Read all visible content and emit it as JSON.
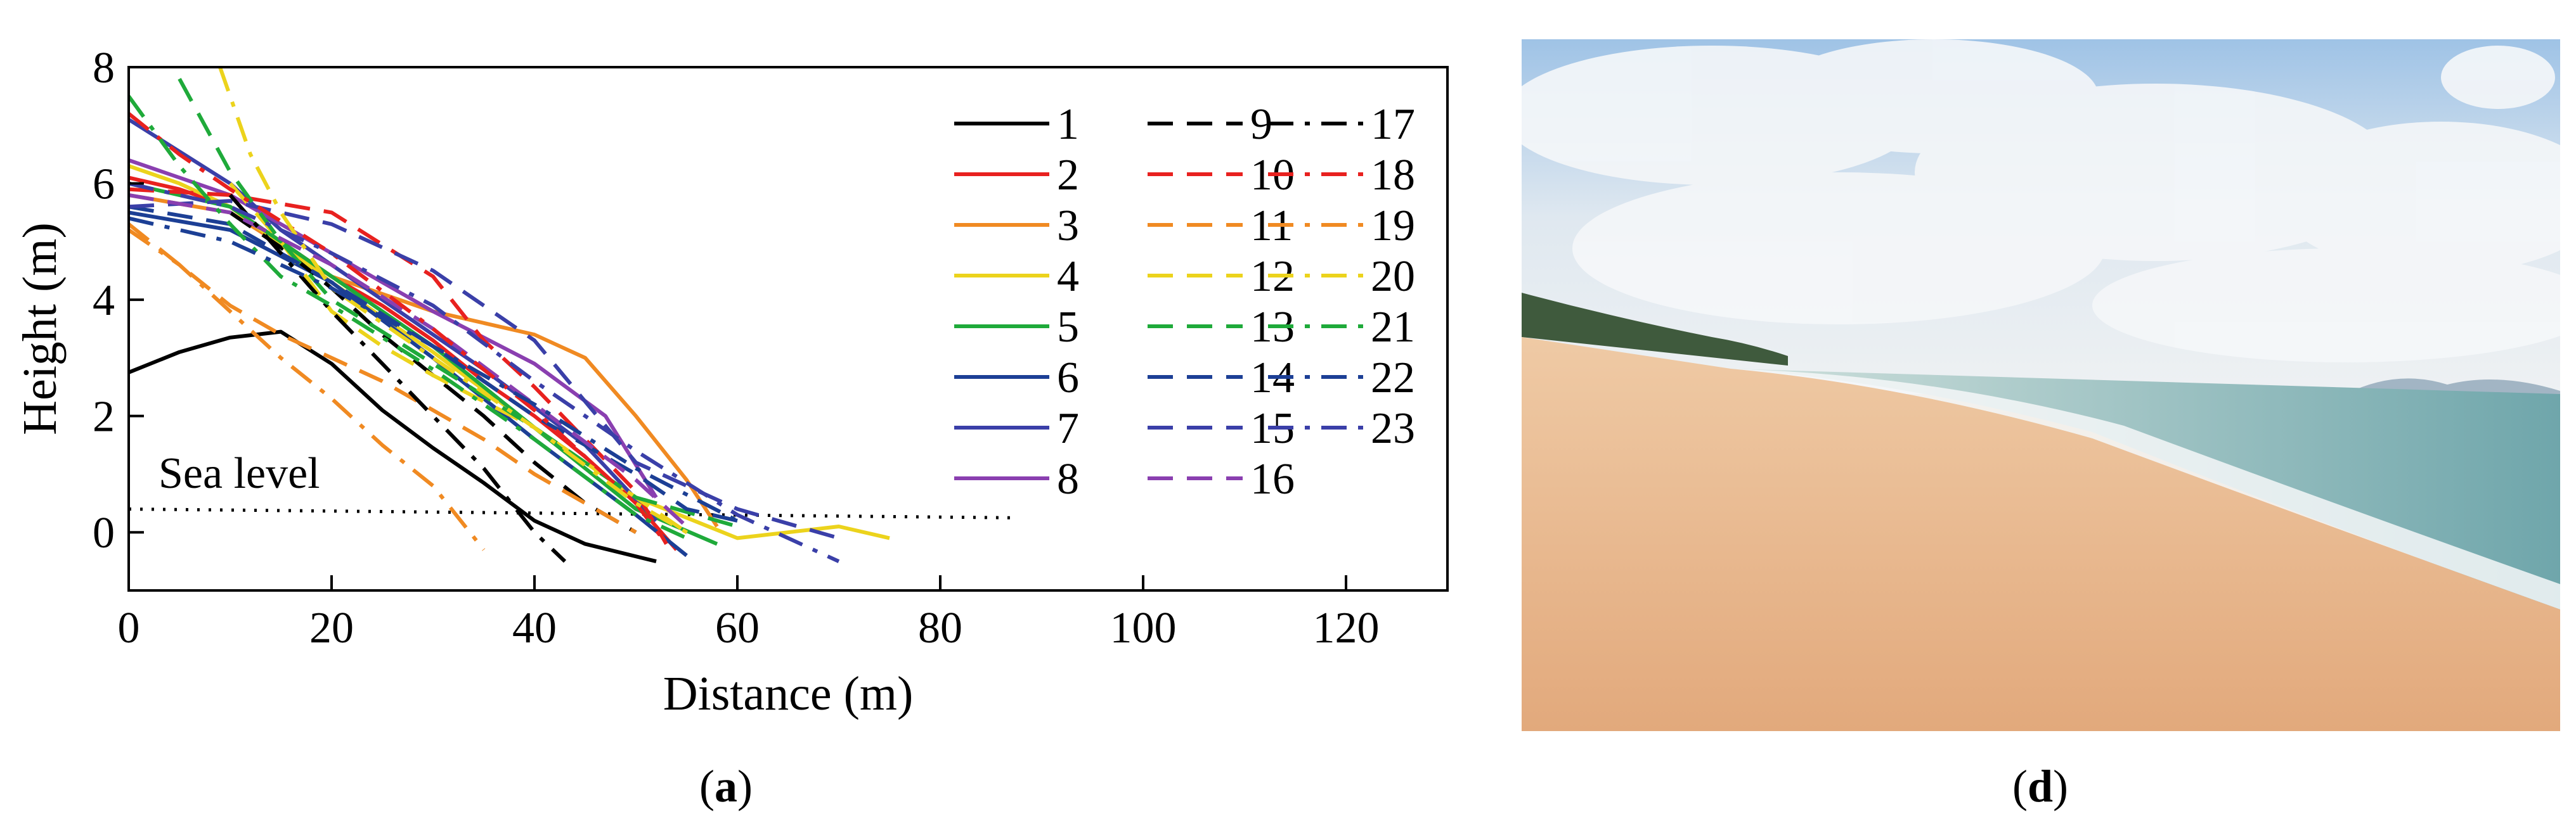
{
  "chart_data": {
    "type": "line",
    "xlabel": "Distance (m)",
    "ylabel": "Height (m)",
    "xlim": [
      0,
      130
    ],
    "ylim": [
      -1,
      8
    ],
    "xticks": [
      "0",
      "20",
      "40",
      "60",
      "80",
      "100",
      "120"
    ],
    "yticks": [
      "0",
      "2",
      "4",
      "6",
      "8"
    ],
    "grid": false,
    "legend_position": "top-right",
    "annotation": "Sea level",
    "sea_level": {
      "x": [
        0,
        87
      ],
      "y": [
        0.4,
        0.25
      ]
    },
    "series": [
      {
        "name": "1",
        "color": "#000000",
        "dash": "solid",
        "x": [
          0,
          5,
          10,
          15,
          20,
          25,
          30,
          35,
          40,
          45,
          52
        ],
        "y": [
          2.75,
          3.1,
          3.35,
          3.45,
          2.9,
          2.1,
          1.45,
          0.85,
          0.2,
          -0.2,
          -0.5
        ]
      },
      {
        "name": "2",
        "color": "#e8211f",
        "dash": "solid",
        "x": [
          0,
          5,
          10,
          15,
          20,
          25,
          30,
          35,
          40,
          45,
          50,
          54
        ],
        "y": [
          6.1,
          5.9,
          5.6,
          5.0,
          4.4,
          3.9,
          3.3,
          2.6,
          2.0,
          1.3,
          0.5,
          -0.3
        ]
      },
      {
        "name": "3",
        "color": "#f08a22",
        "dash": "solid",
        "x": [
          0,
          10,
          20,
          30,
          40,
          45,
          50,
          55,
          58
        ],
        "y": [
          5.8,
          5.5,
          4.4,
          3.8,
          3.4,
          3.0,
          2.0,
          0.9,
          0.1
        ]
      },
      {
        "name": "4",
        "color": "#ecd31c",
        "dash": "solid",
        "x": [
          0,
          5,
          10,
          20,
          30,
          40,
          50,
          60,
          70,
          75
        ],
        "y": [
          6.3,
          6.0,
          5.6,
          4.3,
          3.1,
          1.8,
          0.6,
          -0.1,
          0.1,
          -0.1
        ]
      },
      {
        "name": "5",
        "color": "#1faa3a",
        "dash": "solid",
        "x": [
          0,
          10,
          20,
          30,
          40,
          50,
          58
        ],
        "y": [
          6.0,
          5.6,
          4.4,
          3.2,
          1.8,
          0.4,
          -0.2
        ]
      },
      {
        "name": "6",
        "color": "#1c3f95",
        "dash": "solid",
        "x": [
          0,
          10,
          20,
          30,
          40,
          50,
          55
        ],
        "y": [
          5.5,
          5.2,
          4.3,
          3.0,
          1.6,
          0.3,
          -0.4
        ]
      },
      {
        "name": "7",
        "color": "#3a3fa8",
        "dash": "solid",
        "x": [
          0,
          10,
          15,
          25,
          35,
          45,
          52
        ],
        "y": [
          7.1,
          6.0,
          5.2,
          4.0,
          2.8,
          1.5,
          0.2
        ]
      },
      {
        "name": "8",
        "color": "#8a3fb0",
        "dash": "solid",
        "x": [
          0,
          10,
          20,
          30,
          40,
          47,
          52
        ],
        "y": [
          6.4,
          5.8,
          4.8,
          3.8,
          2.9,
          2.0,
          0.6
        ]
      },
      {
        "name": "9",
        "color": "#000000",
        "dash": "dashed",
        "x": [
          10,
          15,
          20,
          25,
          30,
          35,
          40,
          45,
          50
        ],
        "y": [
          5.5,
          4.9,
          4.2,
          3.4,
          2.7,
          2.0,
          1.2,
          0.5,
          0.0
        ]
      },
      {
        "name": "10",
        "color": "#e8211f",
        "dash": "dashed",
        "x": [
          0,
          10,
          20,
          30,
          35,
          40,
          45,
          50,
          53
        ],
        "y": [
          5.9,
          5.8,
          5.5,
          4.4,
          3.3,
          2.5,
          1.6,
          0.7,
          -0.2
        ]
      },
      {
        "name": "11",
        "color": "#f08a22",
        "dash": "dashed",
        "x": [
          0,
          5,
          10,
          15,
          20,
          25,
          30,
          35,
          40,
          45,
          50
        ],
        "y": [
          5.3,
          4.6,
          3.9,
          3.4,
          3.0,
          2.6,
          2.1,
          1.6,
          1.0,
          0.5,
          0.0
        ]
      },
      {
        "name": "12",
        "color": "#ecd31c",
        "dash": "dashed",
        "x": [
          10,
          15,
          20,
          25,
          30,
          40,
          50,
          55
        ],
        "y": [
          6.0,
          5.0,
          3.8,
          3.2,
          2.7,
          1.8,
          0.6,
          0.0
        ]
      },
      {
        "name": "13",
        "color": "#1faa3a",
        "dash": "dashed",
        "x": [
          5,
          10,
          15,
          20,
          30,
          40,
          50,
          60
        ],
        "y": [
          7.8,
          6.2,
          5.0,
          4.0,
          2.9,
          1.8,
          0.6,
          0.1
        ]
      },
      {
        "name": "14",
        "color": "#1c3f95",
        "dash": "dashed",
        "x": [
          0,
          10,
          20,
          30,
          40,
          50,
          55,
          60
        ],
        "y": [
          5.6,
          5.3,
          4.3,
          3.2,
          2.0,
          1.0,
          0.4,
          0.2
        ]
      },
      {
        "name": "15",
        "color": "#3a3fa8",
        "dash": "dashed",
        "x": [
          0,
          10,
          20,
          30,
          40,
          50,
          60,
          70
        ],
        "y": [
          5.6,
          5.7,
          5.3,
          4.5,
          3.3,
          1.2,
          0.4,
          -0.1
        ]
      },
      {
        "name": "16",
        "color": "#8a3fb0",
        "dash": "dashed",
        "x": [
          0,
          10,
          20,
          30,
          40,
          50,
          55
        ],
        "y": [
          5.8,
          5.5,
          4.6,
          3.5,
          2.2,
          0.9,
          0.1
        ]
      },
      {
        "name": "17",
        "color": "#000000",
        "dash": "dashdot",
        "x": [
          10,
          15,
          20,
          25,
          30,
          35,
          40,
          43
        ],
        "y": [
          5.8,
          4.8,
          3.8,
          2.9,
          2.0,
          1.1,
          0.0,
          -0.5
        ]
      },
      {
        "name": "18",
        "color": "#e8211f",
        "dash": "dashdot",
        "x": [
          0,
          5,
          10,
          20,
          30,
          40,
          45,
          50,
          53
        ],
        "y": [
          7.2,
          6.5,
          5.9,
          4.8,
          3.5,
          2.1,
          1.3,
          0.5,
          -0.2
        ]
      },
      {
        "name": "19",
        "color": "#f08a22",
        "dash": "dashdot",
        "x": [
          0,
          5,
          10,
          15,
          20,
          25,
          30,
          35
        ],
        "y": [
          5.2,
          4.6,
          3.8,
          3.0,
          2.3,
          1.5,
          0.8,
          -0.3
        ]
      },
      {
        "name": "20",
        "color": "#ecd31c",
        "dash": "dashdot",
        "x": [
          9,
          12,
          15,
          20,
          30,
          40,
          50,
          56
        ],
        "y": [
          8.0,
          6.5,
          5.5,
          4.2,
          3.0,
          1.8,
          0.5,
          -0.1
        ]
      },
      {
        "name": "21",
        "color": "#1faa3a",
        "dash": "dashdot",
        "x": [
          0,
          5,
          10,
          15,
          20,
          30,
          40,
          50,
          55
        ],
        "y": [
          7.5,
          6.3,
          5.3,
          4.4,
          3.9,
          2.8,
          1.6,
          0.3,
          -0.1
        ]
      },
      {
        "name": "22",
        "color": "#1c3f95",
        "dash": "dashdot",
        "x": [
          0,
          10,
          20,
          30,
          40,
          50,
          60
        ],
        "y": [
          5.4,
          5.0,
          4.2,
          3.2,
          2.2,
          1.1,
          0.2
        ]
      },
      {
        "name": "23",
        "color": "#3a3fa8",
        "dash": "dashdot",
        "x": [
          0,
          10,
          20,
          30,
          40,
          50,
          60,
          70
        ],
        "y": [
          6.0,
          5.6,
          4.8,
          3.9,
          2.6,
          1.4,
          0.3,
          -0.5
        ]
      }
    ]
  },
  "panels": {
    "a_label": "a",
    "d_label": "d"
  },
  "photo": {
    "colors": {
      "sky_top": "#b9d6ee",
      "cloud": "#f4f6f8",
      "sea_far": "#7fb0b3",
      "sea_near": "#c7d9d6",
      "foam": "#f4f7f8",
      "sand_light": "#f0c9a3",
      "sand": "#e6b185",
      "trees": "#3f5a3d",
      "hills": "#8ea6b8"
    }
  }
}
